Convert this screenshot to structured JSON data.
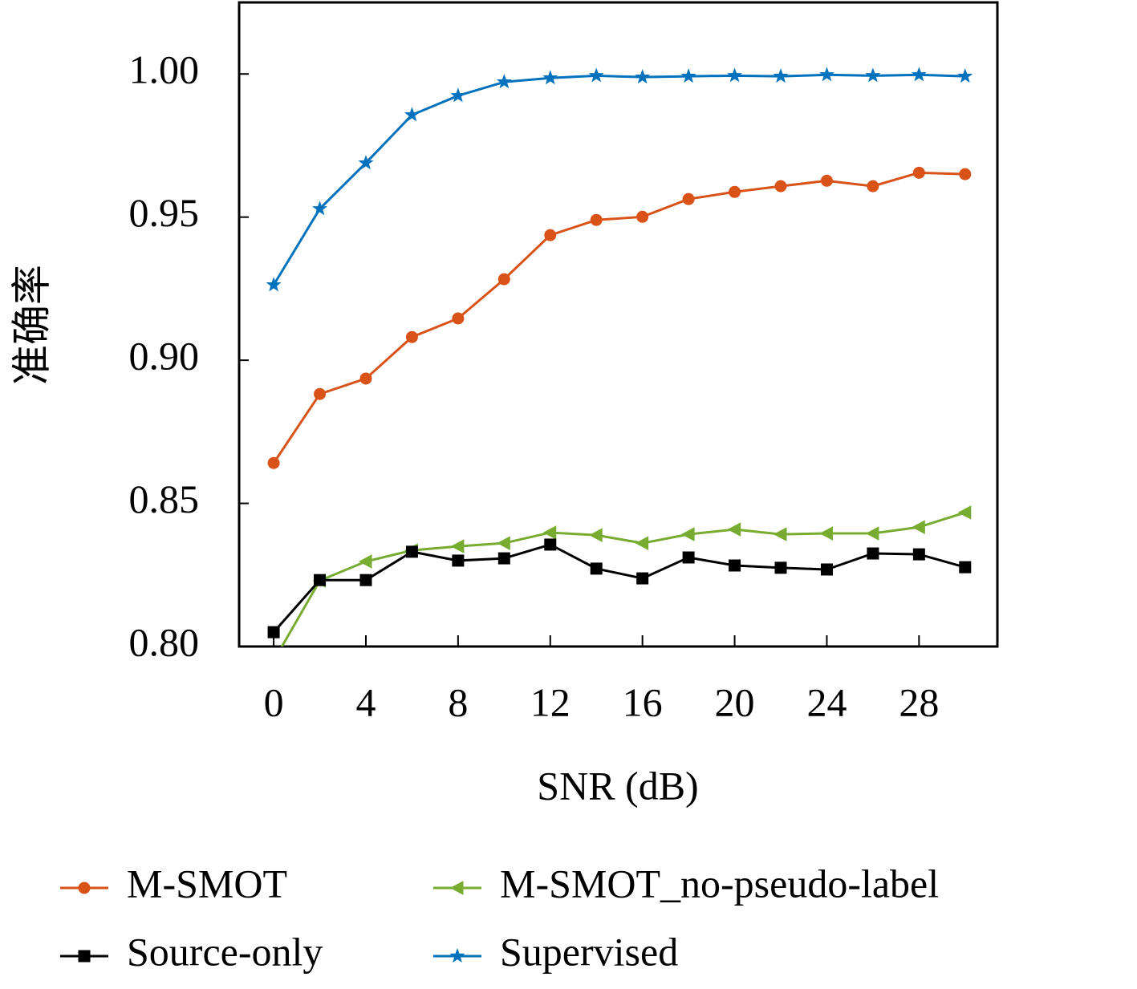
{
  "chart_data": {
    "type": "line",
    "y_label": "准确率",
    "x_label": "SNR (dB)",
    "x": [
      0,
      2,
      4,
      6,
      8,
      10,
      12,
      14,
      16,
      18,
      20,
      22,
      24,
      26,
      28,
      30
    ],
    "series": [
      {
        "name": "M-SMOT",
        "color": "#d95319",
        "marker": "circle",
        "values": [
          0.8641,
          0.8882,
          0.8936,
          0.9081,
          0.9146,
          0.9283,
          0.9437,
          0.949,
          0.9501,
          0.9563,
          0.9588,
          0.9608,
          0.9627,
          0.9608,
          0.9655,
          0.965
        ]
      },
      {
        "name": "M-SMOT_no-pseudo-label",
        "color": "#77ac30",
        "marker": "triangle-left",
        "values": [
          0.795,
          0.823,
          0.8297,
          0.8336,
          0.835,
          0.8361,
          0.8398,
          0.8389,
          0.8361,
          0.8392,
          0.8409,
          0.8392,
          0.8395,
          0.8395,
          0.8417,
          0.8468
        ]
      },
      {
        "name": "Source-only",
        "color": "#000000",
        "marker": "square",
        "values": [
          0.805,
          0.8232,
          0.8232,
          0.8331,
          0.83,
          0.8308,
          0.8356,
          0.8272,
          0.8238,
          0.8311,
          0.8283,
          0.8275,
          0.8269,
          0.8325,
          0.8322,
          0.8277
        ]
      },
      {
        "name": "Supervised",
        "color": "#0072bd",
        "marker": "star",
        "values": [
          0.9263,
          0.9529,
          0.9689,
          0.9857,
          0.9924,
          0.9972,
          0.9986,
          0.9994,
          0.9989,
          0.9992,
          0.9994,
          0.9992,
          0.9997,
          0.9994,
          0.9997,
          0.9992
        ]
      }
    ],
    "xlim": [
      -1.5,
      31.4
    ],
    "ylim": [
      0.8,
      1.025
    ],
    "xticks": [
      0,
      4,
      8,
      12,
      16,
      20,
      24,
      28
    ],
    "yticks": [
      {
        "value": 0.8,
        "label": "0.80"
      },
      {
        "value": 0.85,
        "label": "0.85"
      },
      {
        "value": 0.9,
        "label": "0.90"
      },
      {
        "value": 0.95,
        "label": "0.95"
      },
      {
        "value": 1.0,
        "label": "1.00"
      }
    ]
  }
}
